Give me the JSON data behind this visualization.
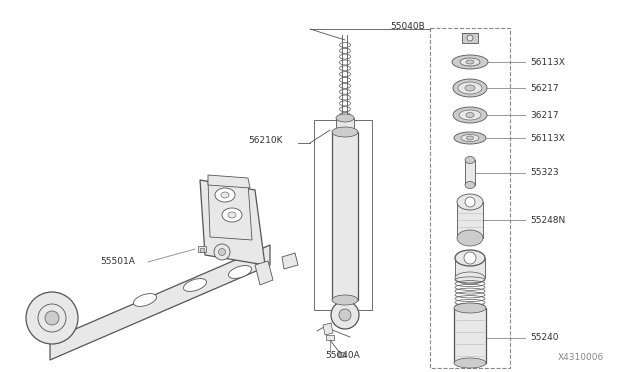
{
  "bg_color": "#ffffff",
  "lc": "#333333",
  "dg": "#555555",
  "mg": "#888888",
  "lg": "#bbbbbb",
  "fg": "#cccccc",
  "fl": "#e8e8e8",
  "fig_w": 6.4,
  "fig_h": 3.72,
  "label_55040B": "55040B",
  "label_56113X": "56113X",
  "label_56217a": "56217",
  "label_36217": "36217",
  "label_56113Xb": "56113X",
  "label_55323": "55323",
  "label_55248N": "55248N",
  "label_55240": "55240",
  "label_56210K": "56210K",
  "label_55501A": "55501A",
  "label_55040A": "55040A",
  "label_diag": "X4310006"
}
